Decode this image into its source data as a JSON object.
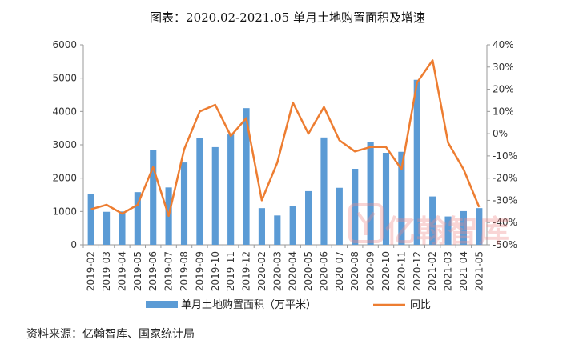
{
  "title": "图表：2020.02-2021.05 单月土地购置面积及增速",
  "source": "资料来源：亿翰智库、国家统计局",
  "watermark_text": "亿翰智库",
  "chart_data": {
    "type": "bar",
    "categories": [
      "2019-02",
      "2019-03",
      "2019-04",
      "2019-05",
      "2019-06",
      "2019-07",
      "2019-08",
      "2019-09",
      "2019-10",
      "2019-11",
      "2019-12",
      "2020-02",
      "2020-03",
      "2020-04",
      "2020-05",
      "2020-06",
      "2020-07",
      "2020-08",
      "2020-09",
      "2020-10",
      "2020-11",
      "2020-12",
      "2021-02",
      "2021-03",
      "2021-04",
      "2021-05"
    ],
    "series": [
      {
        "name": "单月土地购置面积（万平米）",
        "type": "bar",
        "axis": "left",
        "color": "#5b9bd5",
        "values": [
          1520,
          990,
          1000,
          1580,
          2850,
          1720,
          2470,
          3210,
          2930,
          3310,
          4100,
          1100,
          880,
          1170,
          1610,
          3220,
          1710,
          2280,
          3080,
          2760,
          2790,
          4950,
          1450,
          850,
          1010,
          1100
        ]
      },
      {
        "name": "同比",
        "type": "line",
        "axis": "right",
        "color": "#ed7d31",
        "values": [
          -34,
          -32,
          -36,
          -32,
          -15,
          -37,
          -7,
          10,
          13,
          -1,
          7,
          -30,
          -13,
          14,
          0,
          12,
          -3,
          -8,
          -6,
          -6,
          -16,
          23,
          33,
          -4,
          -16,
          -33
        ]
      }
    ],
    "ylim_left": [
      0,
      6000
    ],
    "yticks_left": [
      0,
      1000,
      2000,
      3000,
      4000,
      5000,
      6000
    ],
    "ylim_right": [
      -50,
      40
    ],
    "yticks_right": [
      "40%",
      "30%",
      "20%",
      "10%",
      "0%",
      "-10%",
      "-20%",
      "-30%",
      "-40%",
      "-50%"
    ],
    "legend": "bottom",
    "grid": false
  }
}
